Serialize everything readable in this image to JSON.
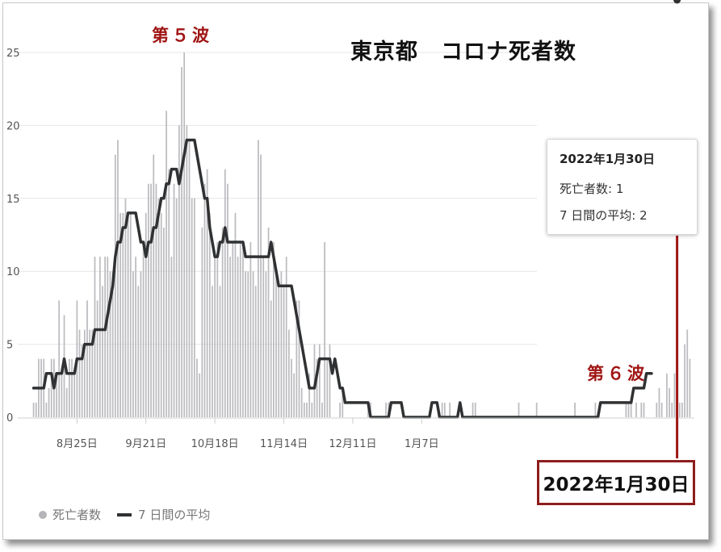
{
  "chart_data": {
    "type": "bar",
    "title": "東京都　コロナ死者数",
    "ylim": [
      0,
      25
    ],
    "yticks": [
      "0",
      "5",
      "10",
      "15",
      "20",
      "25"
    ],
    "xticks": [
      "8月25日",
      "9月21日",
      "10月18日",
      "11月14日",
      "12月11日",
      "1月7日"
    ],
    "grid": true,
    "legend_position": "bottom-left",
    "colors": {
      "bars": "#bcbcc0",
      "average": "#2f3133",
      "annotation": "#a01414"
    },
    "series": [
      {
        "name": "死亡者数",
        "type": "bar",
        "values": [
          1,
          1,
          4,
          4,
          4,
          1,
          2,
          4,
          4,
          3,
          8,
          3,
          7,
          2,
          4,
          4,
          3,
          8,
          6,
          5,
          6,
          8,
          6,
          6,
          11,
          8,
          11,
          9,
          11,
          11,
          10,
          10,
          18,
          19,
          14,
          14,
          15,
          14,
          14,
          10,
          11,
          9,
          10,
          12,
          14,
          16,
          16,
          18,
          16,
          15,
          14,
          13,
          21,
          17,
          11,
          16,
          15,
          20,
          24,
          25,
          20,
          19,
          15,
          15,
          4,
          3,
          13,
          16,
          17,
          14,
          9,
          11,
          12,
          9,
          13,
          17,
          16,
          11,
          12,
          14,
          11,
          12,
          12,
          10,
          10,
          12,
          10,
          9,
          19,
          18,
          11,
          10,
          13,
          8,
          12,
          10,
          9,
          10,
          9,
          11,
          6,
          4,
          3,
          8,
          8,
          2,
          1,
          1,
          3,
          1,
          5,
          4,
          5,
          1,
          12,
          4,
          5,
          0,
          0,
          0,
          1,
          2,
          0,
          0,
          0,
          0,
          0,
          0,
          0,
          0,
          0,
          1,
          1,
          0,
          0,
          0,
          0,
          0,
          1,
          1,
          0,
          0,
          0,
          0,
          0,
          0,
          0,
          0,
          0,
          0,
          0,
          0,
          0,
          0,
          0,
          0,
          0,
          0,
          0,
          0,
          1,
          1,
          0,
          1,
          0,
          0,
          0,
          0,
          0,
          0,
          0,
          0,
          1,
          1,
          0,
          0,
          0,
          0,
          0,
          0,
          0,
          0,
          0,
          0,
          0,
          0,
          0,
          0,
          0,
          0,
          1,
          0,
          0,
          0,
          0,
          0,
          0,
          1,
          0,
          0,
          0,
          0,
          0,
          0,
          0,
          0,
          0,
          0,
          0,
          0,
          0,
          0,
          1,
          0,
          0,
          0,
          0,
          0,
          0,
          0,
          1,
          0,
          0,
          0,
          0,
          0,
          0,
          0,
          0,
          0,
          0,
          0,
          1,
          1,
          1,
          0,
          1,
          0,
          1,
          1,
          0,
          0,
          0,
          0,
          1,
          2,
          1,
          0,
          3,
          2,
          1,
          3,
          2,
          1,
          1,
          5,
          6,
          4
        ]
      },
      {
        "name": "7日間の平均",
        "type": "line",
        "values": [
          2,
          2,
          2,
          2,
          2,
          3,
          3,
          3,
          2,
          3,
          3,
          3,
          4,
          3,
          3,
          3,
          3,
          4,
          4,
          4,
          5,
          5,
          5,
          5,
          6,
          6,
          6,
          6,
          6,
          7,
          8,
          9,
          11,
          12,
          12,
          13,
          13,
          14,
          14,
          14,
          14,
          13,
          12,
          12,
          11,
          12,
          12,
          13,
          13,
          14,
          15,
          15,
          16,
          16,
          17,
          17,
          17,
          16,
          17,
          18,
          19,
          19,
          19,
          19,
          18,
          17,
          16,
          15,
          15,
          13,
          12,
          11,
          11,
          12,
          12,
          13,
          12,
          12,
          12,
          12,
          12,
          12,
          12,
          11,
          11,
          11,
          11,
          11,
          11,
          11,
          11,
          11,
          11,
          12,
          11,
          10,
          9,
          9,
          9,
          9,
          9,
          9,
          8,
          7,
          6,
          5,
          4,
          3,
          2,
          2,
          2,
          3,
          4,
          4,
          4,
          4,
          4,
          3,
          4,
          3,
          2,
          2,
          1,
          1,
          1,
          1,
          1,
          1,
          1,
          1,
          1,
          1,
          0,
          0,
          0,
          0,
          0,
          0,
          0,
          0,
          1,
          1,
          1,
          1,
          1,
          0,
          0,
          0,
          0,
          0,
          0,
          0,
          0,
          0,
          0,
          0,
          1,
          1,
          1,
          0,
          0,
          0,
          0,
          0,
          0,
          0,
          0,
          1,
          0,
          0,
          0,
          0,
          0,
          0,
          0,
          0,
          0,
          0,
          0,
          0,
          0,
          0,
          0,
          0,
          0,
          0,
          0,
          0,
          0,
          0,
          0,
          0,
          0,
          0,
          0,
          0,
          0,
          0,
          0,
          0,
          0,
          0,
          0,
          0,
          0,
          0,
          0,
          0,
          0,
          0,
          0,
          0,
          0,
          0,
          0,
          0,
          0,
          0,
          0,
          0,
          0,
          0,
          1,
          1,
          1,
          1,
          1,
          1,
          1,
          1,
          1,
          1,
          1,
          1,
          1,
          2,
          2,
          2,
          2,
          2,
          3,
          3,
          3
        ]
      }
    ]
  },
  "annotations": {
    "wave5": "第５波",
    "wave6": "第６波"
  },
  "tooltip": {
    "date": "2022年1月30日",
    "deaths": "死亡者数: 1",
    "average": "7 日間の平均: 2"
  },
  "date_box": "2022年1月30日",
  "legend": {
    "bars": "死亡者数",
    "line": "7 日間の平均"
  }
}
